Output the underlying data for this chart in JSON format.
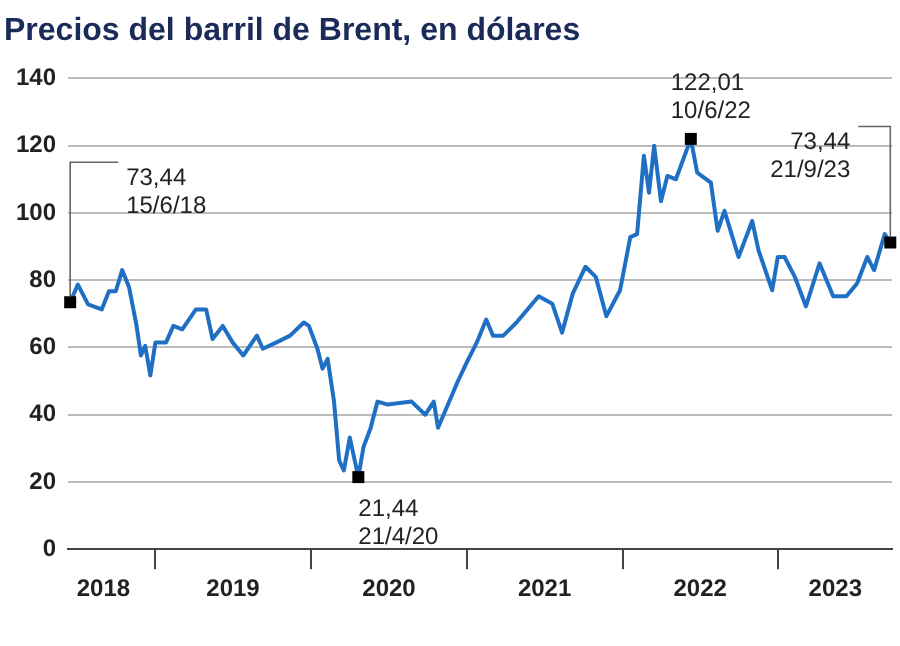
{
  "chart_data": {
    "type": "line",
    "title": "Precios del barril de Brent, en dólares",
    "x": [
      "2018-06-15",
      "2018-07-03",
      "2018-07-27",
      "2018-08-28",
      "2018-09-14",
      "2018-09-30",
      "2018-10-15",
      "2018-10-31",
      "2018-11-17",
      "2018-11-28",
      "2018-12-08",
      "2018-12-20",
      "2019-01-01",
      "2019-01-26",
      "2019-02-12",
      "2019-03-05",
      "2019-04-06",
      "2019-04-30",
      "2019-05-15",
      "2019-06-08",
      "2019-07-01",
      "2019-07-26",
      "2019-08-27",
      "2019-09-10",
      "2019-10-12",
      "2019-11-13",
      "2019-12-15",
      "2019-12-27",
      "2020-01-16",
      "2020-01-28",
      "2020-02-09",
      "2020-02-24",
      "2020-03-07",
      "2020-03-18",
      "2020-04-01",
      "2020-04-21",
      "2020-05-03",
      "2020-05-20",
      "2020-06-05",
      "2020-06-29",
      "2020-08-24",
      "2020-09-25",
      "2020-10-15",
      "2020-10-25",
      "2020-12-10",
      "2021-01-01",
      "2021-01-24",
      "2021-02-15",
      "2021-03-03",
      "2021-03-27",
      "2021-04-27",
      "2021-06-18",
      "2021-07-20",
      "2021-08-12",
      "2021-09-06",
      "2021-10-06",
      "2021-10-30",
      "2021-11-24",
      "2021-12-26",
      "2022-01-19",
      "2022-02-04",
      "2022-02-20",
      "2022-03-04",
      "2022-03-16",
      "2022-04-01",
      "2022-04-16",
      "2022-05-06",
      "2022-06-10",
      "2022-06-25",
      "2022-07-27",
      "2022-08-12",
      "2022-08-28",
      "2022-09-30",
      "2022-11-01",
      "2022-11-16",
      "2022-12-18",
      "2022-12-31",
      "2023-01-16",
      "2023-02-09",
      "2023-03-07",
      "2023-04-08",
      "2023-05-10",
      "2023-06-10",
      "2023-07-05",
      "2023-07-29",
      "2023-08-14",
      "2023-09-08",
      "2023-09-21"
    ],
    "series": [
      {
        "color": "#1f6fc5",
        "values": [
          73.44,
          78.7,
          72.8,
          71.3,
          76.7,
          76.7,
          83,
          78,
          67,
          57.6,
          60.5,
          51.7,
          61.5,
          61.5,
          66.4,
          65.4,
          71.3,
          71.3,
          62.5,
          66.4,
          61.5,
          57.6,
          63.5,
          59.6,
          61.5,
          63.5,
          67.4,
          66.4,
          59.6,
          53.7,
          56.6,
          43.9,
          26.4,
          23.4,
          33.2,
          21.44,
          30.3,
          36.1,
          43.9,
          43,
          43.9,
          40,
          43.9,
          36.1,
          49.8,
          55.7,
          61.5,
          68.3,
          63.5,
          63.5,
          67.4,
          75.2,
          73,
          64.4,
          76,
          84,
          81,
          69.3,
          77,
          92.8,
          93.7,
          117,
          106,
          120,
          103.5,
          111,
          110,
          122.01,
          112,
          109,
          94.7,
          100.6,
          86.9,
          97.6,
          88.8,
          77,
          86.9,
          86.9,
          81,
          72.2,
          85,
          75.2,
          75.2,
          79,
          86.9,
          83,
          93.7,
          91.2
        ]
      }
    ],
    "xlim": [
      "2018-06-10",
      "2023-09-25"
    ],
    "xticks": [
      {
        "value": "2018-09-01",
        "label": "2018"
      },
      {
        "value": "2019-01-01",
        "label": null
      },
      {
        "value": "2019-07-02",
        "label": "2019"
      },
      {
        "value": "2020-01-01",
        "label": null
      },
      {
        "value": "2020-07-02",
        "label": "2020"
      },
      {
        "value": "2021-01-01",
        "label": null
      },
      {
        "value": "2021-07-02",
        "label": "2021"
      },
      {
        "value": "2022-01-01",
        "label": null
      },
      {
        "value": "2022-07-02",
        "label": "2022"
      },
      {
        "value": "2023-01-01",
        "label": null
      },
      {
        "value": "2023-05-15",
        "label": "2023"
      }
    ],
    "ylim": [
      0,
      140
    ],
    "yticks": [
      0,
      20,
      40,
      60,
      80,
      100,
      120,
      140
    ],
    "grid": "y",
    "marker": "none",
    "line_style": "solid",
    "legend": false,
    "annotations": [
      {
        "text": "73,44\n15/6/18",
        "x": "2018-06-15",
        "y": 73.44
      },
      {
        "text": "21,44\n21/4/20",
        "x": "2020-04-21",
        "y": 21.44
      },
      {
        "text": "122,01\n10/6/22",
        "x": "2022-06-10",
        "y": 122.01
      },
      {
        "text": "73,44\n21/9/23",
        "x": "2023-09-21",
        "y": 91.2
      }
    ]
  }
}
